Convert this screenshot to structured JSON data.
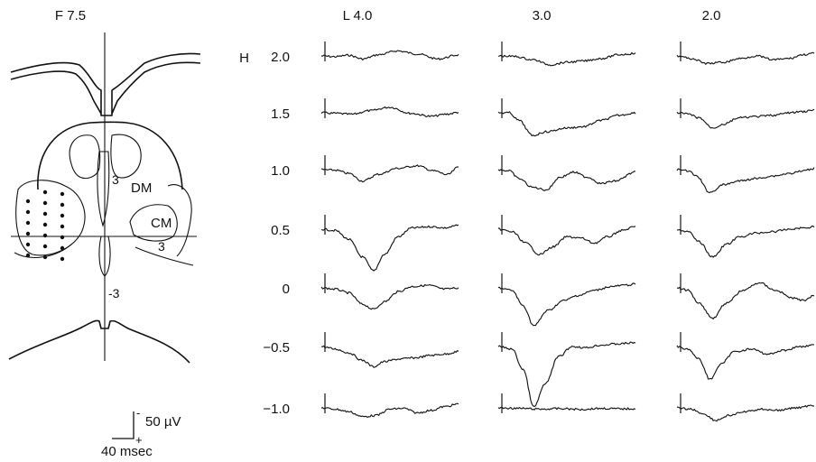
{
  "panel_title": "F 7.5",
  "atlas": {
    "labels": {
      "dm": "DM",
      "cm": "CM",
      "upper_mark": "3",
      "right_mark": "3",
      "lower_mark": "-3"
    }
  },
  "scale_bar": {
    "amplitude": "50 µV",
    "time": "40 msec",
    "minus": "-",
    "plus": "+"
  },
  "h_axis": {
    "prefix": "H",
    "rows": [
      "2.0",
      "1.5",
      "1.0",
      "0.5",
      "0",
      "-0.5",
      "-1.0"
    ]
  },
  "columns": [
    {
      "label": "L 4.0",
      "traces": [
        {
          "h": "2.0",
          "shape": [
            [
              0,
              0
            ],
            [
              0.1,
              0.03
            ],
            [
              0.2,
              -0.03
            ],
            [
              0.3,
              0.12
            ],
            [
              0.42,
              -0.05
            ],
            [
              0.55,
              -0.2
            ],
            [
              0.7,
              -0.08
            ],
            [
              0.85,
              0.12
            ],
            [
              1,
              -0.04
            ]
          ]
        },
        {
          "h": "1.5",
          "shape": [
            [
              0,
              0
            ],
            [
              0.1,
              0.02
            ],
            [
              0.22,
              0.06
            ],
            [
              0.35,
              -0.08
            ],
            [
              0.5,
              -0.22
            ],
            [
              0.65,
              0.02
            ],
            [
              0.8,
              0.14
            ],
            [
              0.92,
              0.05
            ],
            [
              1,
              -0.02
            ]
          ]
        },
        {
          "h": "1.0",
          "shape": [
            [
              0,
              0
            ],
            [
              0.1,
              0.02
            ],
            [
              0.2,
              0.15
            ],
            [
              0.3,
              0.45
            ],
            [
              0.42,
              0.18
            ],
            [
              0.55,
              -0.05
            ],
            [
              0.7,
              -0.15
            ],
            [
              0.82,
              0.05
            ],
            [
              0.92,
              0.2
            ],
            [
              1,
              -0.1
            ]
          ]
        },
        {
          "h": "0.5",
          "shape": [
            [
              0,
              0
            ],
            [
              0.1,
              0.05
            ],
            [
              0.2,
              0.4
            ],
            [
              0.3,
              1.1
            ],
            [
              0.38,
              1.65
            ],
            [
              0.46,
              1.0
            ],
            [
              0.56,
              0.3
            ],
            [
              0.66,
              -0.05
            ],
            [
              0.8,
              -0.1
            ],
            [
              0.9,
              -0.05
            ],
            [
              1,
              -0.15
            ]
          ]
        },
        {
          "h": "0",
          "shape": [
            [
              0,
              0
            ],
            [
              0.1,
              0.05
            ],
            [
              0.2,
              0.2
            ],
            [
              0.3,
              0.65
            ],
            [
              0.38,
              0.85
            ],
            [
              0.46,
              0.55
            ],
            [
              0.56,
              0.15
            ],
            [
              0.66,
              -0.05
            ],
            [
              0.78,
              -0.1
            ],
            [
              0.9,
              0.05
            ],
            [
              1,
              0.0
            ]
          ]
        },
        {
          "h": "-0.5",
          "shape": [
            [
              0,
              0
            ],
            [
              0.1,
              0.1
            ],
            [
              0.2,
              0.25
            ],
            [
              0.3,
              0.55
            ],
            [
              0.38,
              0.8
            ],
            [
              0.46,
              0.6
            ],
            [
              0.56,
              0.5
            ],
            [
              0.68,
              0.45
            ],
            [
              0.8,
              0.35
            ],
            [
              0.9,
              0.3
            ],
            [
              1,
              0.2
            ]
          ]
        },
        {
          "h": "-1.0",
          "shape": [
            [
              0,
              0
            ],
            [
              0.1,
              0.05
            ],
            [
              0.2,
              0.15
            ],
            [
              0.3,
              0.35
            ],
            [
              0.4,
              0.3
            ],
            [
              0.5,
              0.05
            ],
            [
              0.6,
              0.02
            ],
            [
              0.7,
              0.2
            ],
            [
              0.8,
              0.1
            ],
            [
              0.9,
              -0.05
            ],
            [
              1,
              -0.15
            ]
          ]
        }
      ]
    },
    {
      "label": "3.0",
      "traces": [
        {
          "h": "2.0",
          "shape": [
            [
              0,
              0
            ],
            [
              0.12,
              0.02
            ],
            [
              0.25,
              0.15
            ],
            [
              0.38,
              0.35
            ],
            [
              0.5,
              0.25
            ],
            [
              0.62,
              0.2
            ],
            [
              0.75,
              0.1
            ],
            [
              0.88,
              -0.05
            ],
            [
              1,
              -0.1
            ]
          ]
        },
        {
          "h": "1.5",
          "shape": [
            [
              0,
              0
            ],
            [
              0.08,
              0.0
            ],
            [
              0.15,
              0.3
            ],
            [
              0.25,
              0.9
            ],
            [
              0.35,
              0.75
            ],
            [
              0.5,
              0.6
            ],
            [
              0.62,
              0.55
            ],
            [
              0.75,
              0.3
            ],
            [
              0.88,
              0.1
            ],
            [
              1,
              0.0
            ]
          ]
        },
        {
          "h": "1.0",
          "shape": [
            [
              0,
              0
            ],
            [
              0.08,
              0.05
            ],
            [
              0.15,
              0.35
            ],
            [
              0.25,
              0.7
            ],
            [
              0.35,
              0.8
            ],
            [
              0.45,
              0.3
            ],
            [
              0.55,
              0.1
            ],
            [
              0.65,
              0.3
            ],
            [
              0.75,
              0.55
            ],
            [
              0.85,
              0.45
            ],
            [
              1,
              0.1
            ]
          ]
        },
        {
          "h": "0.5",
          "shape": [
            [
              0,
              0
            ],
            [
              0.1,
              0.1
            ],
            [
              0.2,
              0.55
            ],
            [
              0.3,
              1.0
            ],
            [
              0.4,
              0.7
            ],
            [
              0.5,
              0.3
            ],
            [
              0.6,
              0.35
            ],
            [
              0.7,
              0.55
            ],
            [
              0.8,
              0.3
            ],
            [
              0.9,
              0.05
            ],
            [
              1,
              -0.1
            ]
          ]
        },
        {
          "h": "0",
          "shape": [
            [
              0,
              0
            ],
            [
              0.1,
              0.1
            ],
            [
              0.18,
              0.7
            ],
            [
              0.26,
              1.5
            ],
            [
              0.36,
              0.9
            ],
            [
              0.48,
              0.5
            ],
            [
              0.58,
              0.3
            ],
            [
              0.7,
              0.1
            ],
            [
              0.82,
              -0.05
            ],
            [
              0.92,
              -0.1
            ],
            [
              1,
              -0.15
            ]
          ]
        },
        {
          "h": "-0.5",
          "shape": [
            [
              0,
              0
            ],
            [
              0.1,
              0.1
            ],
            [
              0.18,
              0.9
            ],
            [
              0.26,
              2.4
            ],
            [
              0.34,
              1.5
            ],
            [
              0.44,
              0.4
            ],
            [
              0.54,
              0.0
            ],
            [
              0.64,
              0.05
            ],
            [
              0.74,
              -0.05
            ],
            [
              0.86,
              -0.1
            ],
            [
              1,
              -0.15
            ]
          ]
        },
        {
          "h": "-1.0",
          "shape": [
            [
              0,
              0
            ],
            [
              0.15,
              0.02
            ],
            [
              0.3,
              0.05
            ],
            [
              0.45,
              0.03
            ],
            [
              0.6,
              0.06
            ],
            [
              0.75,
              0.02
            ],
            [
              0.9,
              0.04
            ],
            [
              1,
              0.03
            ]
          ]
        }
      ]
    },
    {
      "label": "2.0",
      "traces": [
        {
          "h": "2.0",
          "shape": [
            [
              0,
              0
            ],
            [
              0.1,
              0.1
            ],
            [
              0.22,
              0.3
            ],
            [
              0.34,
              0.25
            ],
            [
              0.46,
              0.1
            ],
            [
              0.58,
              0.0
            ],
            [
              0.7,
              0.15
            ],
            [
              0.82,
              0.1
            ],
            [
              0.92,
              -0.05
            ],
            [
              1,
              -0.1
            ]
          ]
        },
        {
          "h": "1.5",
          "shape": [
            [
              0,
              0
            ],
            [
              0.08,
              0.05
            ],
            [
              0.16,
              0.2
            ],
            [
              0.26,
              0.6
            ],
            [
              0.34,
              0.45
            ],
            [
              0.45,
              0.2
            ],
            [
              0.58,
              0.15
            ],
            [
              0.7,
              0.1
            ],
            [
              0.82,
              0.0
            ],
            [
              0.92,
              -0.05
            ],
            [
              1,
              -0.1
            ]
          ]
        },
        {
          "h": "1.0",
          "shape": [
            [
              0,
              0
            ],
            [
              0.08,
              0.05
            ],
            [
              0.14,
              0.25
            ],
            [
              0.24,
              0.9
            ],
            [
              0.34,
              0.6
            ],
            [
              0.45,
              0.45
            ],
            [
              0.58,
              0.35
            ],
            [
              0.7,
              0.25
            ],
            [
              0.82,
              0.15
            ],
            [
              0.92,
              0.05
            ],
            [
              1,
              -0.05
            ]
          ]
        },
        {
          "h": "0.5",
          "shape": [
            [
              0,
              0
            ],
            [
              0.08,
              0.1
            ],
            [
              0.16,
              0.5
            ],
            [
              0.26,
              1.1
            ],
            [
              0.36,
              0.6
            ],
            [
              0.46,
              0.3
            ],
            [
              0.58,
              0.15
            ],
            [
              0.7,
              0.1
            ],
            [
              0.82,
              0.0
            ],
            [
              0.92,
              -0.05
            ],
            [
              1,
              -0.1
            ]
          ]
        },
        {
          "h": "0",
          "shape": [
            [
              0,
              0
            ],
            [
              0.08,
              0.1
            ],
            [
              0.16,
              0.6
            ],
            [
              0.26,
              1.2
            ],
            [
              0.36,
              0.6
            ],
            [
              0.48,
              0.1
            ],
            [
              0.6,
              -0.2
            ],
            [
              0.72,
              0.1
            ],
            [
              0.84,
              0.4
            ],
            [
              0.92,
              0.5
            ],
            [
              1,
              0.3
            ]
          ]
        },
        {
          "h": "-0.5",
          "shape": [
            [
              0,
              0
            ],
            [
              0.08,
              0.1
            ],
            [
              0.16,
              0.5
            ],
            [
              0.24,
              1.3
            ],
            [
              0.32,
              0.7
            ],
            [
              0.42,
              0.2
            ],
            [
              0.54,
              0.1
            ],
            [
              0.66,
              0.3
            ],
            [
              0.78,
              0.15
            ],
            [
              0.9,
              0.0
            ],
            [
              1,
              -0.05
            ]
          ]
        },
        {
          "h": "-1.0",
          "shape": [
            [
              0,
              0
            ],
            [
              0.1,
              0.05
            ],
            [
              0.2,
              0.25
            ],
            [
              0.28,
              0.5
            ],
            [
              0.38,
              0.3
            ],
            [
              0.5,
              0.15
            ],
            [
              0.62,
              0.05
            ],
            [
              0.74,
              0.1
            ],
            [
              0.86,
              0.0
            ],
            [
              1,
              -0.1
            ]
          ]
        }
      ]
    }
  ]
}
